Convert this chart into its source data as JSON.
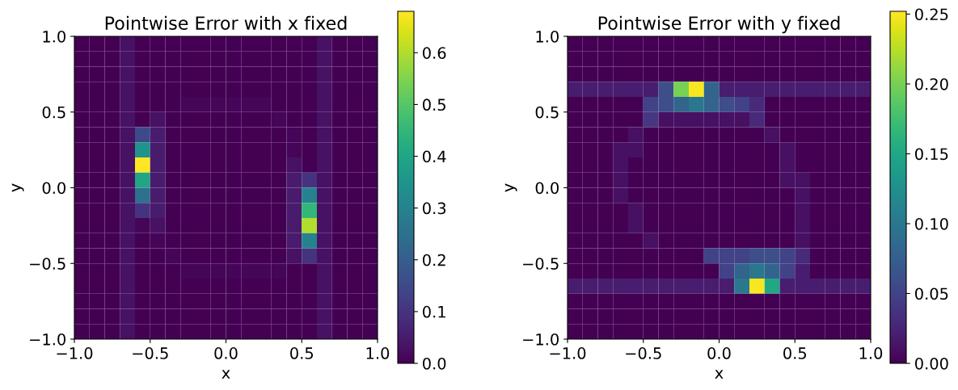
{
  "chart_data": [
    {
      "type": "heatmap",
      "title": "Pointwise Error with x fixed",
      "xlabel": "x",
      "ylabel": "y",
      "x": [
        -0.95,
        -0.85,
        -0.75,
        -0.65,
        -0.55,
        -0.45,
        -0.35,
        -0.25,
        -0.15,
        -0.05,
        0.05,
        0.15,
        0.25,
        0.35,
        0.45,
        0.55,
        0.65,
        0.75,
        0.85,
        0.95
      ],
      "y": [
        0.95,
        0.85,
        0.75,
        0.65,
        0.55,
        0.45,
        0.35,
        0.25,
        0.15,
        0.05,
        -0.05,
        -0.15,
        -0.25,
        -0.35,
        -0.45,
        -0.55,
        -0.65,
        -0.75,
        -0.85,
        -0.95
      ],
      "xlim": [
        -1,
        1
      ],
      "ylim": [
        -1,
        1
      ],
      "xticks": [
        {
          "value": -1,
          "label": "−1.0"
        },
        {
          "value": -0.5,
          "label": "−0.5"
        },
        {
          "value": 0,
          "label": "0.0"
        },
        {
          "value": 0.5,
          "label": "0.5"
        },
        {
          "value": 1,
          "label": "1.0"
        }
      ],
      "yticks": [
        {
          "value": -1,
          "label": "−1.0"
        },
        {
          "value": -0.5,
          "label": "−0.5"
        },
        {
          "value": 0,
          "label": "0.0"
        },
        {
          "value": 0.5,
          "label": "0.5"
        },
        {
          "value": 1,
          "label": "1.0"
        }
      ],
      "clim": [
        0,
        0.68
      ],
      "cticks": [
        {
          "value": 0,
          "label": "0.0"
        },
        {
          "value": 0.1,
          "label": "0.1"
        },
        {
          "value": 0.2,
          "label": "0.2"
        },
        {
          "value": 0.3,
          "label": "0.3"
        },
        {
          "value": 0.4,
          "label": "0.4"
        },
        {
          "value": 0.5,
          "label": "0.5"
        },
        {
          "value": 0.6,
          "label": "0.6"
        }
      ],
      "cells": [
        [
          0,
          0,
          0,
          0.03,
          0,
          0,
          0,
          0,
          0,
          0,
          0,
          0,
          0,
          0,
          0,
          0,
          0.03,
          0,
          0,
          0
        ],
        [
          0,
          0,
          0,
          0.03,
          0,
          0,
          0,
          0,
          0,
          0,
          0,
          0,
          0,
          0,
          0,
          0,
          0.03,
          0,
          0,
          0
        ],
        [
          0,
          0,
          0,
          0.03,
          0,
          0,
          0,
          0,
          0,
          0,
          0,
          0,
          0,
          0,
          0,
          0,
          0.03,
          0,
          0,
          0
        ],
        [
          0,
          0,
          0,
          0.03,
          0,
          0,
          0,
          0,
          0,
          0,
          0,
          0,
          0,
          0,
          0,
          0,
          0.03,
          0,
          0,
          0
        ],
        [
          0,
          0,
          0,
          0.03,
          0,
          0,
          0,
          0.01,
          0.01,
          0.01,
          0.01,
          0.01,
          0.01,
          0,
          0,
          0,
          0.03,
          0,
          0,
          0
        ],
        [
          0,
          0,
          0,
          0.03,
          0,
          0.03,
          0,
          0,
          0,
          0,
          0,
          0,
          0,
          0.01,
          0,
          0,
          0.03,
          0,
          0,
          0
        ],
        [
          0,
          0,
          0,
          0.03,
          0.15,
          0.05,
          0,
          0,
          0,
          0,
          0,
          0,
          0,
          0,
          0.01,
          0,
          0.03,
          0,
          0,
          0
        ],
        [
          0,
          0,
          0,
          0.03,
          0.35,
          0.05,
          0,
          0,
          0,
          0,
          0,
          0,
          0,
          0,
          0.01,
          0,
          0.03,
          0,
          0,
          0
        ],
        [
          0,
          0,
          0,
          0.03,
          0.68,
          0.05,
          0,
          0,
          0,
          0,
          0,
          0,
          0,
          0,
          0.03,
          0,
          0.03,
          0,
          0,
          0
        ],
        [
          0,
          0,
          0,
          0.03,
          0.4,
          0.05,
          0,
          0,
          0,
          0,
          0,
          0,
          0,
          0,
          0.05,
          0.1,
          0.03,
          0,
          0,
          0
        ],
        [
          0,
          0,
          0,
          0.03,
          0.25,
          0.05,
          0,
          0,
          0,
          0,
          0,
          0,
          0,
          0,
          0.05,
          0.3,
          0.03,
          0,
          0,
          0
        ],
        [
          0,
          0,
          0,
          0.03,
          0.1,
          0.05,
          0,
          0,
          0,
          0,
          0,
          0,
          0,
          0,
          0.05,
          0.45,
          0.03,
          0,
          0,
          0
        ],
        [
          0,
          0,
          0,
          0.03,
          0.01,
          0.03,
          0,
          0,
          0,
          0,
          0,
          0,
          0,
          0,
          0.05,
          0.6,
          0.03,
          0,
          0,
          0
        ],
        [
          0,
          0,
          0,
          0.03,
          0,
          0.01,
          0,
          0,
          0,
          0,
          0,
          0,
          0,
          0,
          0.05,
          0.3,
          0.03,
          0,
          0,
          0
        ],
        [
          0,
          0,
          0,
          0.03,
          0,
          0,
          0.01,
          0,
          0,
          0,
          0,
          0,
          0,
          0,
          0.03,
          0.1,
          0.03,
          0,
          0,
          0
        ],
        [
          0,
          0,
          0,
          0.03,
          0,
          0,
          0,
          0.01,
          0.01,
          0.01,
          0.01,
          0.01,
          0.01,
          0.01,
          0,
          0,
          0.03,
          0,
          0,
          0
        ],
        [
          0,
          0,
          0,
          0.03,
          0,
          0,
          0,
          0,
          0,
          0,
          0,
          0,
          0,
          0,
          0,
          0,
          0.03,
          0,
          0,
          0
        ],
        [
          0,
          0,
          0,
          0.03,
          0,
          0,
          0,
          0,
          0,
          0,
          0,
          0,
          0,
          0,
          0,
          0,
          0.03,
          0,
          0,
          0
        ],
        [
          0,
          0,
          0,
          0.03,
          0,
          0,
          0,
          0,
          0,
          0,
          0,
          0,
          0,
          0,
          0,
          0,
          0.03,
          0,
          0,
          0
        ],
        [
          0,
          0,
          0,
          0.03,
          0,
          0,
          0,
          0,
          0,
          0,
          0,
          0,
          0,
          0,
          0,
          0,
          0.03,
          0,
          0,
          0
        ]
      ]
    },
    {
      "type": "heatmap",
      "title": "Pointwise Error with y fixed",
      "xlabel": "x",
      "ylabel": "y",
      "x": [
        -0.95,
        -0.85,
        -0.75,
        -0.65,
        -0.55,
        -0.45,
        -0.35,
        -0.25,
        -0.15,
        -0.05,
        0.05,
        0.15,
        0.25,
        0.35,
        0.45,
        0.55,
        0.65,
        0.75,
        0.85,
        0.95
      ],
      "y": [
        0.95,
        0.85,
        0.75,
        0.65,
        0.55,
        0.45,
        0.35,
        0.25,
        0.15,
        0.05,
        -0.05,
        -0.15,
        -0.25,
        -0.35,
        -0.45,
        -0.55,
        -0.65,
        -0.75,
        -0.85,
        -0.95
      ],
      "xlim": [
        -1,
        1
      ],
      "ylim": [
        -1,
        1
      ],
      "xticks": [
        {
          "value": -1,
          "label": "−1.0"
        },
        {
          "value": -0.5,
          "label": "−0.5"
        },
        {
          "value": 0,
          "label": "0.0"
        },
        {
          "value": 0.5,
          "label": "0.5"
        },
        {
          "value": 1,
          "label": "1.0"
        }
      ],
      "yticks": [
        {
          "value": -1,
          "label": "−1.0"
        },
        {
          "value": -0.5,
          "label": "−0.5"
        },
        {
          "value": 0,
          "label": "0.0"
        },
        {
          "value": 0.5,
          "label": "0.5"
        },
        {
          "value": 1,
          "label": "1.0"
        }
      ],
      "clim": [
        0,
        0.252
      ],
      "cticks": [
        {
          "value": 0,
          "label": "0.00"
        },
        {
          "value": 0.05,
          "label": "0.05"
        },
        {
          "value": 0.1,
          "label": "0.10"
        },
        {
          "value": 0.15,
          "label": "0.15"
        },
        {
          "value": 0.2,
          "label": "0.20"
        },
        {
          "value": 0.25,
          "label": "0.25"
        }
      ],
      "cells": [
        [
          0,
          0,
          0,
          0,
          0,
          0,
          0,
          0,
          0,
          0,
          0,
          0,
          0,
          0,
          0,
          0,
          0,
          0,
          0,
          0
        ],
        [
          0,
          0,
          0,
          0,
          0,
          0,
          0,
          0,
          0,
          0,
          0,
          0,
          0,
          0,
          0,
          0,
          0,
          0,
          0,
          0
        ],
        [
          0,
          0,
          0,
          0,
          0,
          0,
          0,
          0,
          0,
          0,
          0,
          0,
          0,
          0,
          0,
          0,
          0,
          0,
          0,
          0
        ],
        [
          0.02,
          0.02,
          0.02,
          0.02,
          0.02,
          0.02,
          0.06,
          0.2,
          0.25,
          0.08,
          0.02,
          0.02,
          0.02,
          0.02,
          0.02,
          0.02,
          0.02,
          0.02,
          0.02,
          0.02
        ],
        [
          0,
          0,
          0,
          0,
          0,
          0.05,
          0.06,
          0.08,
          0.1,
          0.08,
          0.06,
          0.05,
          0.03,
          0,
          0,
          0,
          0,
          0,
          0,
          0
        ],
        [
          0,
          0,
          0,
          0,
          0,
          0.04,
          0.01,
          0.01,
          0.01,
          0.01,
          0.01,
          0.01,
          0.03,
          0,
          0,
          0,
          0,
          0,
          0,
          0
        ],
        [
          0,
          0,
          0,
          0,
          0.01,
          0,
          0,
          0,
          0,
          0,
          0,
          0,
          0,
          0.01,
          0,
          0,
          0,
          0,
          0,
          0
        ],
        [
          0,
          0,
          0,
          0.01,
          0.01,
          0,
          0,
          0,
          0,
          0,
          0,
          0,
          0,
          0,
          0.01,
          0,
          0,
          0,
          0,
          0
        ],
        [
          0,
          0,
          0,
          0.01,
          0,
          0,
          0,
          0,
          0,
          0,
          0,
          0,
          0,
          0,
          0.01,
          0,
          0,
          0,
          0,
          0
        ],
        [
          0,
          0,
          0,
          0.01,
          0,
          0,
          0,
          0,
          0,
          0,
          0,
          0,
          0,
          0,
          0.01,
          0.01,
          0,
          0,
          0,
          0
        ],
        [
          0,
          0,
          0,
          0.01,
          0,
          0,
          0,
          0,
          0,
          0,
          0,
          0,
          0,
          0,
          0,
          0.01,
          0,
          0,
          0,
          0
        ],
        [
          0,
          0,
          0,
          0,
          0.01,
          0,
          0,
          0,
          0,
          0,
          0,
          0,
          0,
          0,
          0,
          0.01,
          0,
          0,
          0,
          0
        ],
        [
          0,
          0,
          0,
          0,
          0.01,
          0,
          0,
          0,
          0,
          0,
          0,
          0,
          0,
          0,
          0,
          0.01,
          0,
          0,
          0,
          0
        ],
        [
          0,
          0,
          0,
          0,
          0,
          0.01,
          0,
          0,
          0,
          0,
          0,
          0,
          0,
          0,
          0,
          0.01,
          0,
          0,
          0,
          0
        ],
        [
          0,
          0,
          0,
          0,
          0,
          0,
          0,
          0,
          0,
          0.05,
          0.05,
          0.05,
          0.06,
          0.06,
          0.05,
          0.03,
          0,
          0,
          0,
          0
        ],
        [
          0,
          0,
          0,
          0,
          0,
          0,
          0,
          0,
          0,
          0,
          0.05,
          0.08,
          0.1,
          0.08,
          0.05,
          0.02,
          0,
          0,
          0,
          0
        ],
        [
          0.02,
          0.02,
          0.02,
          0.02,
          0.02,
          0.02,
          0.02,
          0.02,
          0.02,
          0.02,
          0.02,
          0.1,
          0.25,
          0.15,
          0.02,
          0.02,
          0.02,
          0.02,
          0.02,
          0.02
        ],
        [
          0,
          0,
          0,
          0,
          0,
          0,
          0,
          0,
          0,
          0,
          0,
          0,
          0,
          0,
          0,
          0,
          0,
          0,
          0,
          0
        ],
        [
          0,
          0,
          0,
          0,
          0,
          0,
          0,
          0,
          0,
          0,
          0,
          0,
          0,
          0,
          0,
          0,
          0,
          0,
          0,
          0
        ],
        [
          0,
          0,
          0,
          0,
          0,
          0,
          0,
          0,
          0,
          0,
          0,
          0,
          0,
          0,
          0,
          0,
          0,
          0,
          0,
          0
        ]
      ]
    }
  ]
}
